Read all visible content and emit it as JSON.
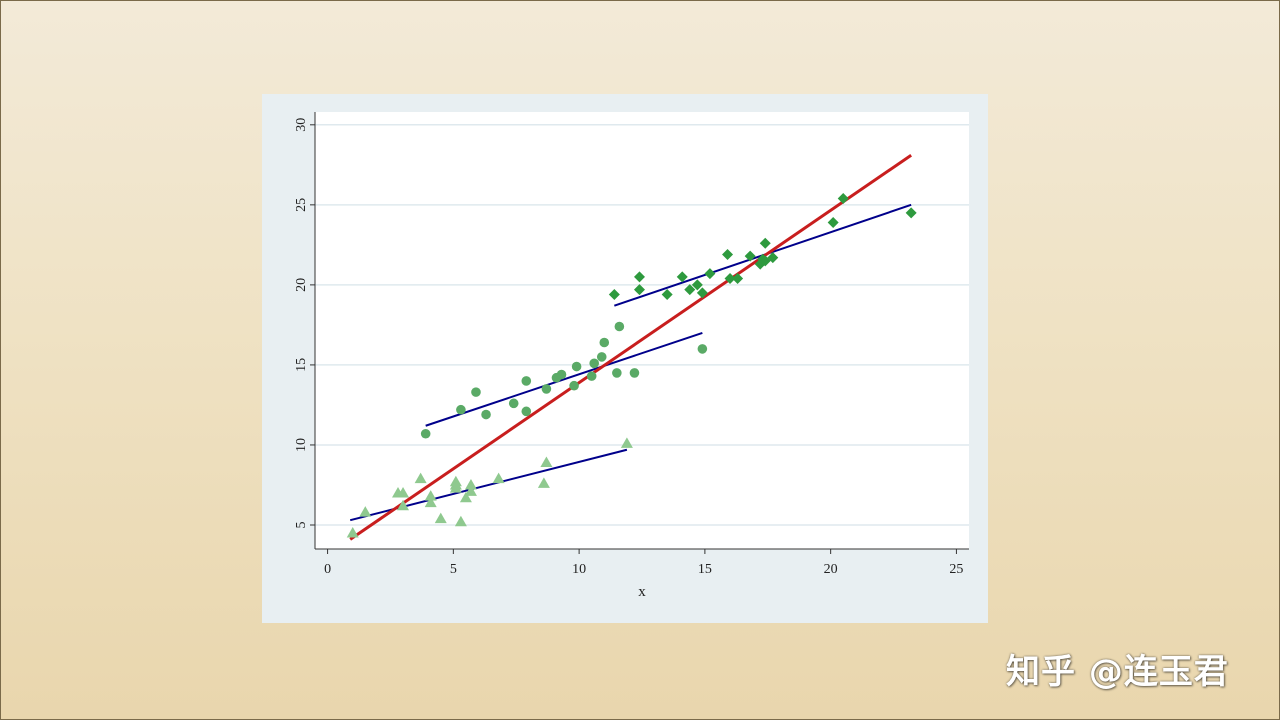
{
  "watermark": "知乎 @连玉君",
  "chart_data": {
    "type": "scatter",
    "xlabel": "x",
    "ylabel": "",
    "xlim": [
      -0.5,
      25.5
    ],
    "ylim": [
      3.5,
      30.8
    ],
    "xticks": [
      0,
      5,
      10,
      15,
      20,
      25
    ],
    "yticks": [
      5,
      10,
      15,
      20,
      25,
      30
    ],
    "grid": true,
    "colors": {
      "triangles": "#8fc98f",
      "circles": "#5aaa66",
      "diamonds": "#2e9a3e",
      "group_fit": "#00008b",
      "overall_fit": "#c81e1e",
      "grid": "#dfe9ee",
      "plot_bg": "#ffffff"
    },
    "series": [
      {
        "marker": "triangle",
        "points": [
          [
            1.0,
            4.5
          ],
          [
            1.5,
            5.8
          ],
          [
            2.8,
            7.0
          ],
          [
            3.0,
            7.0
          ],
          [
            3.0,
            6.2
          ],
          [
            3.7,
            7.9
          ],
          [
            4.1,
            6.8
          ],
          [
            4.1,
            6.4
          ],
          [
            4.5,
            5.4
          ],
          [
            5.1,
            7.7
          ],
          [
            5.1,
            7.5
          ],
          [
            5.1,
            7.3
          ],
          [
            5.3,
            5.2
          ],
          [
            5.5,
            6.7
          ],
          [
            5.7,
            7.5
          ],
          [
            5.7,
            7.1
          ],
          [
            6.8,
            7.9
          ],
          [
            8.6,
            7.6
          ],
          [
            8.7,
            8.9
          ],
          [
            11.9,
            10.1
          ]
        ]
      },
      {
        "marker": "circle",
        "points": [
          [
            3.9,
            10.7
          ],
          [
            5.3,
            12.2
          ],
          [
            5.9,
            13.3
          ],
          [
            6.3,
            11.9
          ],
          [
            7.4,
            12.6
          ],
          [
            7.9,
            12.1
          ],
          [
            7.9,
            14.0
          ],
          [
            8.7,
            13.5
          ],
          [
            9.1,
            14.2
          ],
          [
            9.3,
            14.4
          ],
          [
            9.8,
            13.7
          ],
          [
            9.9,
            14.9
          ],
          [
            10.5,
            14.3
          ],
          [
            10.6,
            15.1
          ],
          [
            10.9,
            15.5
          ],
          [
            11.0,
            16.4
          ],
          [
            11.5,
            14.5
          ],
          [
            11.6,
            17.4
          ],
          [
            12.2,
            14.5
          ],
          [
            14.9,
            16.0
          ]
        ]
      },
      {
        "marker": "diamond",
        "points": [
          [
            11.4,
            19.4
          ],
          [
            12.4,
            20.5
          ],
          [
            12.4,
            19.7
          ],
          [
            13.5,
            19.4
          ],
          [
            14.1,
            20.5
          ],
          [
            14.4,
            19.7
          ],
          [
            14.7,
            20.0
          ],
          [
            14.9,
            19.5
          ],
          [
            15.2,
            20.7
          ],
          [
            15.9,
            21.9
          ],
          [
            16.0,
            20.4
          ],
          [
            16.3,
            20.4
          ],
          [
            16.8,
            21.8
          ],
          [
            17.2,
            21.3
          ],
          [
            17.3,
            21.6
          ],
          [
            17.4,
            22.6
          ],
          [
            17.4,
            21.5
          ],
          [
            17.7,
            21.7
          ],
          [
            20.1,
            23.9
          ],
          [
            20.5,
            25.4
          ],
          [
            23.2,
            24.5
          ]
        ]
      }
    ],
    "fit_lines": [
      {
        "kind": "group",
        "from": [
          0.9,
          5.3
        ],
        "to": [
          11.9,
          9.7
        ]
      },
      {
        "kind": "group",
        "from": [
          3.9,
          11.2
        ],
        "to": [
          14.9,
          17.0
        ]
      },
      {
        "kind": "group",
        "from": [
          11.4,
          18.7
        ],
        "to": [
          23.2,
          25.0
        ]
      },
      {
        "kind": "overall",
        "from": [
          0.9,
          4.1
        ],
        "to": [
          23.2,
          28.1
        ]
      }
    ]
  }
}
